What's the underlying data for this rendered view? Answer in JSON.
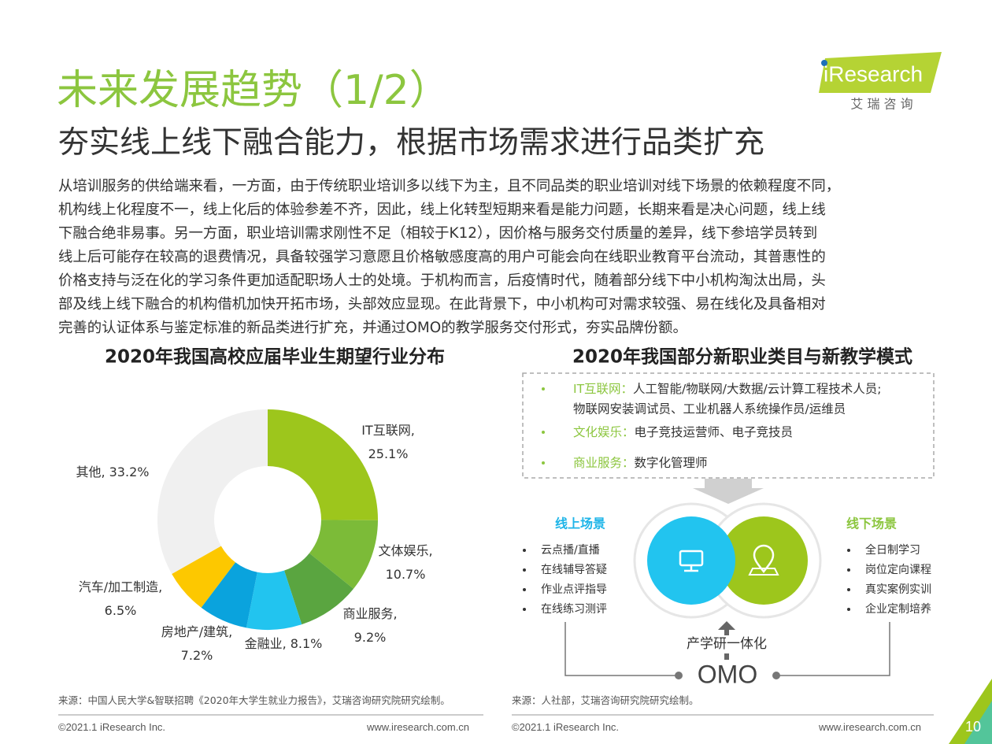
{
  "header": {
    "title": "未来发展趋势（1/2）",
    "subtitle": "夯实线上线下融合能力，根据市场需求进行品类扩充",
    "logo": "iResearch",
    "logo_cn": "艾 瑞 咨 询"
  },
  "body": [
    "从培训服务的供给端来看，一方面，由于传统职业培训多以线下为主，且不同品类的职业培训对线下场景的依赖程度不同，",
    "机构线上化程度不一，线上化后的体验参差不齐，因此，线上化转型短期来看是能力问题，长期来看是决心问题，线上线",
    "下融合绝非易事。另一方面，职业培训需求刚性不足（相较于K12），因价格与服务交付质量的差异，线下参培学员转到",
    "线上后可能存在较高的退费情况，具备较强学习意愿且价格敏感度高的用户可能会向在线职业教育平台流动，其普惠性的",
    "价格支持与泛在化的学习条件更加适配职场人士的处境。于机构而言，后疫情时代，随着部分线下中小机构淘汰出局，头",
    "部及线上线下融合的机构借机加快开拓市场，头部效应显现。在此背景下，中小机构可对需求较强、易在线化及具备相对",
    "完善的认证体系与鉴定标准的新品类进行扩充，并通过OMO的教学服务交付形式，夯实品牌份额。"
  ],
  "chart_data": {
    "type": "pie",
    "title": "2020年我国高校应届毕业生期望行业分布",
    "categories": [
      "IT互联网,",
      "文体娱乐,",
      "商业服务,",
      "金融业,",
      "房地产/建筑,",
      "汽车/加工制造,",
      "其他,"
    ],
    "values": [
      25.1,
      10.7,
      9.2,
      8.1,
      7.2,
      6.5,
      33.2
    ],
    "value_labels": [
      "25.1%",
      "10.7%",
      "9.2%",
      "8.1%",
      "7.2%",
      "6.5%",
      "33.2%"
    ],
    "colors": [
      "#9dc61c",
      "#7cbb38",
      "#5aa540",
      "#22c4ef",
      "#0aa3dd",
      "#fdc800",
      "#f0f0f0"
    ],
    "donut": true
  },
  "diagram": {
    "title": "2020年我国部分新职业类目与新教学模式",
    "categories": [
      {
        "name": "IT互联网：",
        "lines": [
          "人工智能/物联网/大数据/云计算工程技术人员;",
          "物联网安装调试员、工业机器人系统操作员/运维员"
        ]
      },
      {
        "name": "文化娱乐：",
        "lines": [
          "电子竞技运营师、电子竞技员"
        ]
      },
      {
        "name": "商业服务：",
        "lines": [
          "数字化管理师"
        ]
      }
    ],
    "online": {
      "title": "线上场景",
      "items": [
        "云点播/直播",
        "在线辅导答疑",
        "作业点评指导",
        "在线练习测评"
      ]
    },
    "offline": {
      "title": "线下场景",
      "items": [
        "全日制学习",
        "岗位定向课程",
        "真实案例实训",
        "企业定制培养"
      ]
    },
    "integration": "产学研一体化",
    "center": "OMO"
  },
  "footer": {
    "source_left": "来源：中国人民大学&智联招聘《2020年大学生就业力报告》，艾瑞咨询研究院研究绘制。",
    "source_right": "来源：人社部，艾瑞咨询研究院研究绘制。",
    "copyright_left": "©2021.1 iResearch Inc.",
    "url_left": "www.iresearch.com.cn",
    "copyright_right": "©2021.1 iResearch Inc.",
    "url_right": "www.iresearch.com.cn",
    "page": "10"
  }
}
